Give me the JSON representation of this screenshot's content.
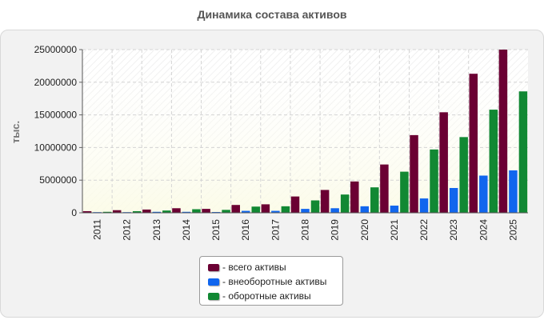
{
  "chart_data": {
    "type": "bar",
    "title": "Динамика состава активов",
    "ylabel": "тыс.",
    "xlabel": "",
    "categories": [
      "2011",
      "2012",
      "2013",
      "2014",
      "2015",
      "2016",
      "2017",
      "2018",
      "2019",
      "2020",
      "2021",
      "2022",
      "2023",
      "2024",
      "2025"
    ],
    "ylim": [
      0,
      25000000
    ],
    "yticks": [
      "0",
      "5000000",
      "10000000",
      "15000000",
      "20000000",
      "25000000"
    ],
    "grid": true,
    "legend_position": "bottom",
    "series": [
      {
        "name": "- всего активы",
        "color": "#6b0033",
        "values": [
          250000,
          400000,
          500000,
          700000,
          600000,
          1200000,
          1300000,
          2500000,
          3500000,
          4800000,
          7400000,
          11900000,
          15400000,
          21300000,
          25000000
        ]
      },
      {
        "name": "- внеоборотные активы",
        "color": "#1166ee",
        "values": [
          100000,
          100000,
          150000,
          150000,
          120000,
          300000,
          300000,
          600000,
          700000,
          1000000,
          1100000,
          2200000,
          3800000,
          5700000,
          6500000
        ]
      },
      {
        "name": "- оборотные активы",
        "color": "#118833",
        "values": [
          150000,
          250000,
          350000,
          550000,
          450000,
          950000,
          1000000,
          1900000,
          2800000,
          3900000,
          6300000,
          9700000,
          11600000,
          15800000,
          18600000
        ]
      }
    ]
  }
}
